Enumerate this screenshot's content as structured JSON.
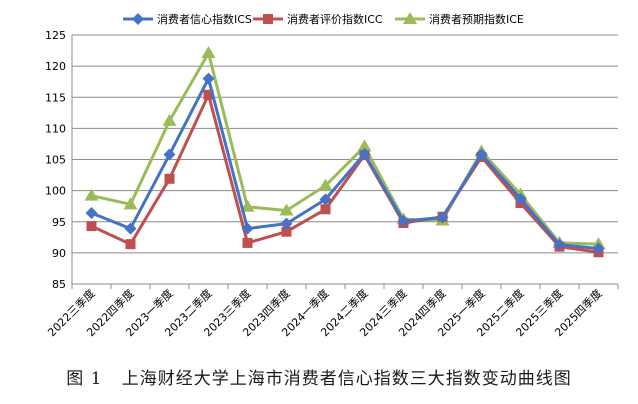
{
  "caption": {
    "figure_no": "图 1",
    "text": "上海财经大学上海市消费者信心指数三大指数变动曲线图"
  },
  "chart_data": {
    "type": "line",
    "title": "",
    "xlabel": "",
    "ylabel": "",
    "ylim": [
      85,
      125
    ],
    "yticks": [
      85,
      90,
      95,
      100,
      105,
      110,
      115,
      120,
      125
    ],
    "grid": true,
    "legend_position": "top",
    "categories": [
      "2022三季度",
      "2022四季度",
      "2023一季度",
      "2023二季度",
      "2023三季度",
      "2023四季度",
      "2024一季度",
      "2024二季度",
      "2024三季度",
      "2024四季度",
      "2025一季度",
      "2025二季度",
      "2025三季度",
      "2025四季度"
    ],
    "series": [
      {
        "name": "消费者信心指数ICS",
        "color": "#4472C4",
        "marker": "diamond",
        "values": [
          96.4,
          93.9,
          105.8,
          118.0,
          93.9,
          94.7,
          98.6,
          105.9,
          95.1,
          95.7,
          105.8,
          98.7,
          91.3,
          90.7
        ]
      },
      {
        "name": "消费者评价指数ICC",
        "color": "#C0504D",
        "marker": "square",
        "values": [
          94.3,
          91.4,
          101.9,
          115.4,
          91.6,
          93.4,
          97.0,
          105.7,
          94.8,
          95.8,
          105.4,
          98.0,
          91.0,
          90.1
        ]
      },
      {
        "name": "消费者预期指数ICE",
        "color": "#9BBB59",
        "marker": "triangle",
        "values": [
          99.2,
          97.8,
          111.2,
          122.1,
          97.4,
          96.8,
          100.8,
          107.1,
          95.4,
          95.2,
          106.3,
          99.4,
          91.6,
          91.4
        ]
      }
    ]
  }
}
